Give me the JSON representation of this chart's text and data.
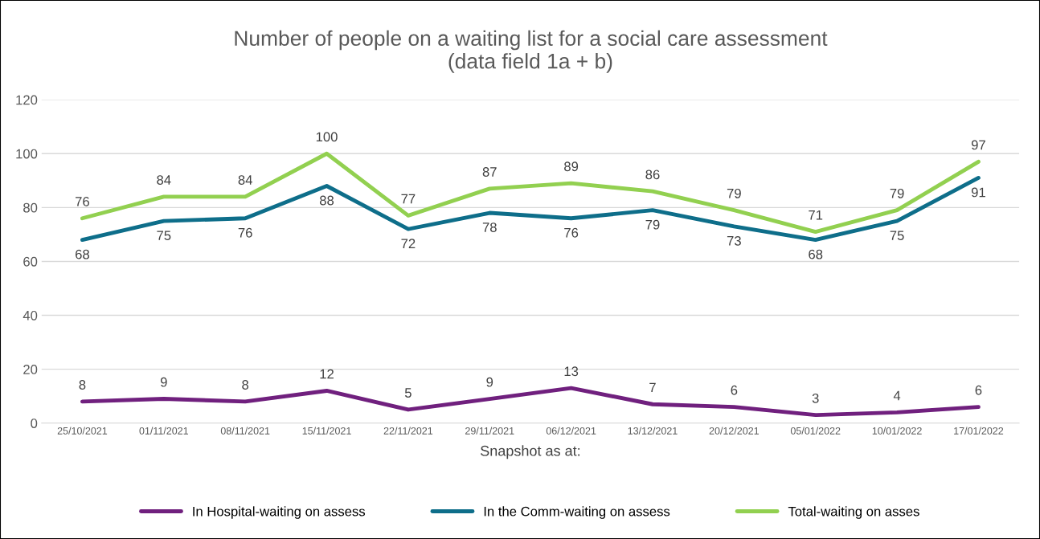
{
  "chart_data": {
    "type": "line",
    "title": "Number of people on a waiting list for a social care assessment\n(data field 1a + b)",
    "xlabel": "Snapshot as at:",
    "categories": [
      "25/10/2021",
      "01/11/2021",
      "08/11/2021",
      "15/11/2021",
      "22/11/2021",
      "29/11/2021",
      "06/12/2021",
      "13/12/2021",
      "20/12/2021",
      "05/01/2022",
      "10/01/2022",
      "17/01/2022"
    ],
    "series": [
      {
        "name": "In Hospital-waiting on assess",
        "color": "#70207e",
        "values": [
          8,
          9,
          8,
          12,
          5,
          9,
          13,
          7,
          6,
          3,
          4,
          6
        ]
      },
      {
        "name": "In the Comm-waiting on assess",
        "color": "#0e6e8a",
        "values": [
          68,
          75,
          76,
          88,
          72,
          78,
          76,
          79,
          73,
          68,
          75,
          91
        ]
      },
      {
        "name": "Total-waiting on asses",
        "color": "#92d050",
        "values": [
          76,
          84,
          84,
          100,
          77,
          87,
          89,
          86,
          79,
          71,
          79,
          97
        ]
      }
    ],
    "ylim": [
      0,
      120
    ],
    "yticks": [
      0,
      20,
      40,
      60,
      80,
      100,
      120
    ],
    "grid": "y",
    "legend": "bottom",
    "data_labels": true,
    "marker": "none",
    "line_style": "solid"
  }
}
